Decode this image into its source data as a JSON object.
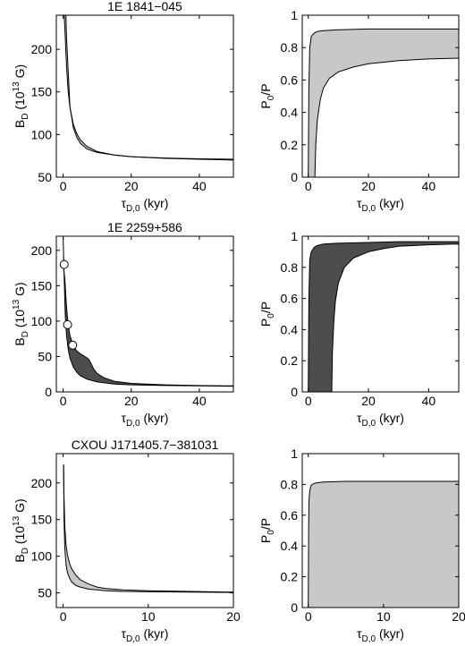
{
  "figure": {
    "background": "#ffffff",
    "light_fill": "#c8c8c8",
    "dark_fill": "#4d4d4d",
    "line_color": "#000000"
  },
  "chart_data": [
    {
      "type": "area",
      "title": "1E 1841−045",
      "xlabel": "τD,0 (kyr)",
      "ylabel": "BD (10^13 G)",
      "xlim": [
        -2,
        50
      ],
      "ylim": [
        50,
        240
      ],
      "xticks": [
        0,
        20,
        40
      ],
      "yticks": [
        50,
        100,
        150,
        200
      ],
      "fill_color": "#c8c8c8",
      "series": [
        {
          "x": [
            0.8,
            1,
            2,
            3,
            4,
            5,
            7,
            10,
            15,
            20,
            30,
            40,
            50
          ],
          "values": [
            240,
            214,
            133,
            108,
            97,
            90,
            83,
            79,
            76,
            74,
            72.5,
            71.5,
            71
          ]
        },
        {
          "x": [
            0.3,
            0.5,
            1,
            1.5,
            2,
            3,
            4,
            5,
            7,
            10,
            15,
            20,
            30,
            40,
            50
          ],
          "values": [
            240,
            225,
            180,
            150,
            132,
            112,
            101,
            94,
            86,
            80,
            76,
            74,
            72,
            71,
            70
          ]
        }
      ]
    },
    {
      "type": "area",
      "title": "",
      "xlabel": "τD,0 (kyr)",
      "ylabel": "P0/P",
      "xlim": [
        -2,
        50
      ],
      "ylim": [
        0,
        1
      ],
      "xticks": [
        0,
        20,
        40
      ],
      "yticks": [
        0,
        0.2,
        0.4,
        0.6,
        0.8,
        1
      ],
      "fill_color": "#c8c8c8",
      "series": [
        {
          "x": [
            0,
            0.2,
            0.5,
            1,
            2,
            3,
            5,
            10,
            20,
            30,
            40,
            50
          ],
          "values": [
            0,
            0.55,
            0.8,
            0.87,
            0.89,
            0.9,
            0.905,
            0.91,
            0.915,
            0.915,
            0.915,
            0.915
          ]
        },
        {
          "x": [
            2.2,
            2.5,
            3,
            4,
            5,
            7,
            10,
            15,
            20,
            30,
            40,
            50
          ],
          "values": [
            0,
            0.2,
            0.35,
            0.48,
            0.55,
            0.61,
            0.65,
            0.68,
            0.7,
            0.72,
            0.73,
            0.735
          ]
        }
      ]
    },
    {
      "type": "area",
      "title": "1E 2259+586",
      "xlabel": "τD,0 (kyr)",
      "ylabel": "BD (10^13 G)",
      "xlim": [
        -2,
        50
      ],
      "ylim": [
        0,
        220
      ],
      "xticks": [
        0,
        20,
        40
      ],
      "yticks": [
        0,
        50,
        100,
        150,
        200
      ],
      "fill_color": "#4d4d4d",
      "series": [
        {
          "x": [
            0,
            0.3,
            0.6,
            1,
            1.5,
            2,
            3,
            4,
            5,
            7,
            10,
            15,
            20,
            30,
            40,
            50
          ],
          "values": [
            220,
            160,
            110,
            80,
            60,
            48,
            35,
            28,
            23,
            18,
            14,
            11,
            10,
            9,
            8.5,
            8
          ]
        },
        {
          "x": [
            0,
            0.5,
            1,
            1.5,
            2,
            3,
            4,
            5,
            6,
            7,
            7.5,
            8,
            9,
            10,
            12,
            15,
            20,
            30,
            40,
            50
          ],
          "values": [
            180,
            160,
            120,
            94,
            80,
            64,
            58,
            54,
            51,
            48,
            46,
            42,
            32,
            26,
            20,
            15,
            12,
            10,
            9,
            8.5
          ]
        }
      ],
      "markers": {
        "x": [
          0.3,
          1.3,
          2.8
        ],
        "values": [
          180,
          95,
          66
        ]
      }
    },
    {
      "type": "area",
      "title": "",
      "xlabel": "τD,0 (kyr)",
      "ylabel": "P0/P",
      "xlim": [
        -2,
        50
      ],
      "ylim": [
        0,
        1
      ],
      "xticks": [
        0,
        20,
        40
      ],
      "yticks": [
        0,
        0.2,
        0.4,
        0.6,
        0.8,
        1
      ],
      "fill_color": "#4d4d4d",
      "series": [
        {
          "x": [
            0,
            0.2,
            0.5,
            1,
            2,
            3,
            5,
            10,
            20,
            30,
            40,
            50
          ],
          "values": [
            0,
            0.6,
            0.85,
            0.9,
            0.93,
            0.94,
            0.95,
            0.955,
            0.96,
            0.965,
            0.965,
            0.965
          ]
        },
        {
          "x": [
            7.8,
            8,
            8.5,
            9,
            10,
            12,
            15,
            20,
            25,
            30,
            40,
            50
          ],
          "values": [
            0,
            0.25,
            0.45,
            0.58,
            0.7,
            0.8,
            0.86,
            0.9,
            0.92,
            0.935,
            0.945,
            0.95
          ]
        }
      ]
    },
    {
      "type": "area",
      "title": "CXOU J171405.7−381031",
      "xlabel": "τD,0 (kyr)",
      "ylabel": "BD (10^13 G)",
      "xlim": [
        -0.8,
        20
      ],
      "ylim": [
        30,
        240
      ],
      "xticks": [
        0,
        10,
        20
      ],
      "yticks": [
        50,
        100,
        150,
        200
      ],
      "fill_color": "#c8c8c8",
      "series": [
        {
          "x": [
            0.05,
            0.1,
            0.2,
            0.35,
            0.5,
            0.75,
            1,
            1.5,
            2,
            3,
            4,
            5,
            7,
            10,
            15,
            20
          ],
          "values": [
            225,
            180,
            140,
            115,
            102,
            90,
            83,
            74,
            68,
            62,
            58,
            56,
            54,
            53,
            52,
            51
          ]
        },
        {
          "x": [
            0.05,
            0.1,
            0.2,
            0.35,
            0.5,
            0.75,
            1,
            1.5,
            2,
            3,
            4,
            5,
            7,
            10,
            15,
            20
          ],
          "values": [
            225,
            150,
            110,
            88,
            78,
            70,
            65,
            60,
            58,
            55,
            54,
            53,
            52,
            51.5,
            51,
            50.5
          ]
        }
      ]
    },
    {
      "type": "area",
      "title": "",
      "xlabel": "τD,0 (kyr)",
      "ylabel": "P0/P",
      "xlim": [
        -0.8,
        20
      ],
      "ylim": [
        0,
        1
      ],
      "xticks": [
        0,
        10,
        20
      ],
      "yticks": [
        0,
        0.2,
        0.4,
        0.6,
        0.8,
        1
      ],
      "fill_color": "#c8c8c8",
      "series": [
        {
          "x": [
            0,
            0.05,
            0.1,
            0.2,
            0.35,
            0.5,
            1,
            2,
            5,
            10,
            20
          ],
          "values": [
            0,
            0.55,
            0.7,
            0.76,
            0.79,
            0.8,
            0.81,
            0.815,
            0.82,
            0.82,
            0.82
          ]
        },
        {
          "x": [
            0.05,
            20
          ],
          "values": [
            0,
            0
          ]
        }
      ]
    }
  ]
}
